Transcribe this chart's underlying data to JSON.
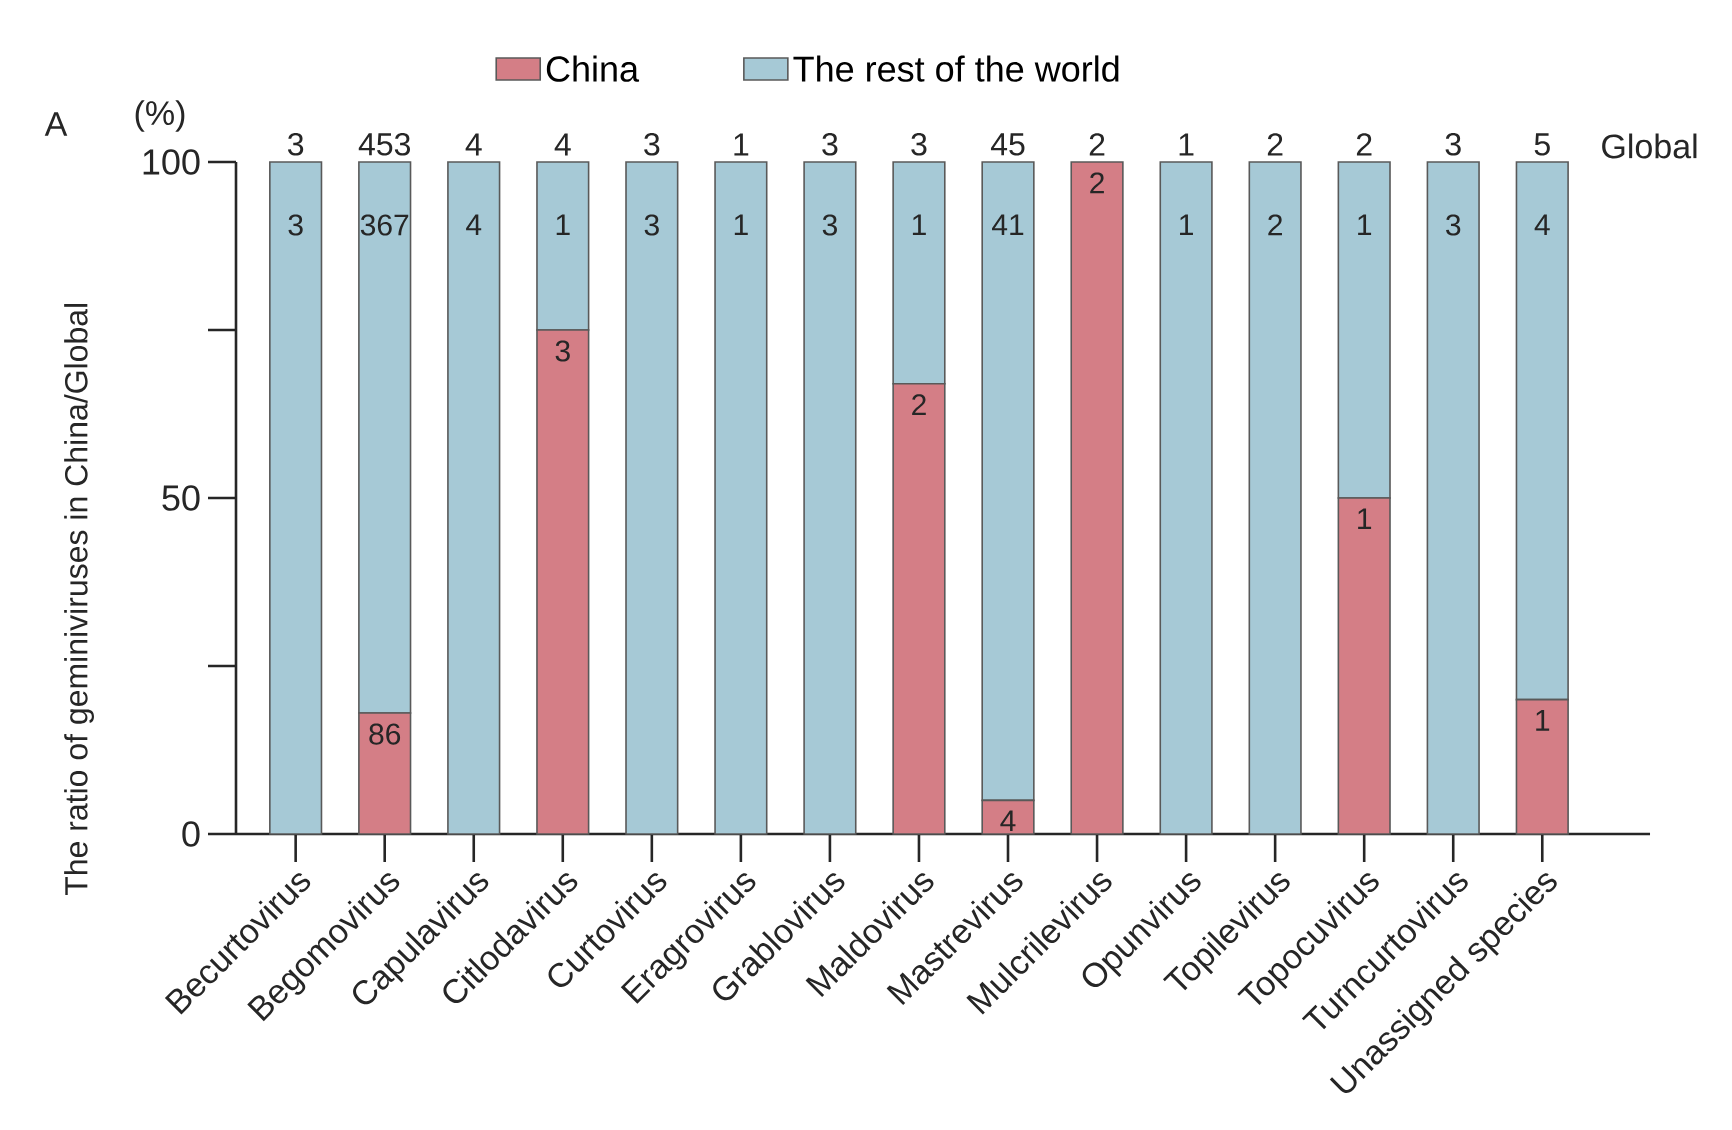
{
  "chart_data": {
    "type": "bar",
    "stacked": true,
    "ylabel": "The ratio of geminiviruses in China/Global",
    "categories": [
      "Becurtovirus",
      "Begomovirus",
      "Capulavirus",
      "Citlodavirus",
      "Curtovirus",
      "Eragrovirus",
      "Grablovirus",
      "Maldovirus",
      "Mastrevirus",
      "Mulcrilevirus",
      "Opunvirus",
      "Topilevirus",
      "Topocuvirus",
      "Turncurtovirus",
      "Unassigned species"
    ],
    "series": [
      {
        "name": "China",
        "color": "#d47e86",
        "values": [
          0,
          18,
          0,
          75,
          0,
          0,
          0,
          67,
          5,
          100,
          0,
          0,
          50,
          0,
          20
        ]
      },
      {
        "name": "The rest of the world",
        "color": "#a6c9d6",
        "values": [
          100,
          82,
          100,
          25,
          100,
          100,
          100,
          33,
          95,
          0,
          100,
          100,
          50,
          100,
          80
        ]
      }
    ],
    "annotations": [
      "A",
      "(%)",
      "Global",
      {
        "text": "3",
        "x": "Becurtovirus",
        "y": 100
      },
      {
        "text": "453",
        "x": "Begomovirus",
        "y": 100
      },
      {
        "text": "4",
        "x": "Capulavirus",
        "y": 100
      },
      {
        "text": "4",
        "x": "Citlodavirus",
        "y": 100
      },
      {
        "text": "3",
        "x": "Curtovirus",
        "y": 100
      },
      {
        "text": "1",
        "x": "Eragrovirus",
        "y": 100
      },
      {
        "text": "3",
        "x": "Grablovirus",
        "y": 100
      },
      {
        "text": "3",
        "x": "Maldovirus",
        "y": 100
      },
      {
        "text": "45",
        "x": "Mastrevirus",
        "y": 100
      },
      {
        "text": "2",
        "x": "Mulcrilevirus",
        "y": 100
      },
      {
        "text": "1",
        "x": "Opunvirus",
        "y": 100
      },
      {
        "text": "2",
        "x": "Topilevirus",
        "y": 100
      },
      {
        "text": "2",
        "x": "Topocuvirus",
        "y": 100
      },
      {
        "text": "3",
        "x": "Turncurtovirus",
        "y": 100
      },
      {
        "text": "5",
        "x": "Unassigned species",
        "y": 100
      },
      {
        "text": "3",
        "x": "Becurtovirus",
        "y": 100
      },
      {
        "text": "367",
        "x": "Begomovirus",
        "y": 100
      },
      {
        "text": "4",
        "x": "Capulavirus",
        "y": 100
      },
      {
        "text": "1",
        "x": "Citlodavirus",
        "y": 100
      },
      {
        "text": "3",
        "x": "Curtovirus",
        "y": 100
      },
      {
        "text": "1",
        "x": "Eragrovirus",
        "y": 100
      },
      {
        "text": "3",
        "x": "Grablovirus",
        "y": 100
      },
      {
        "text": "1",
        "x": "Maldovirus",
        "y": 100
      },
      {
        "text": "41",
        "x": "Mastrevirus",
        "y": 100
      },
      {
        "text": "1",
        "x": "Opunvirus",
        "y": 100
      },
      {
        "text": "2",
        "x": "Topilevirus",
        "y": 100
      },
      {
        "text": "1",
        "x": "Topocuvirus",
        "y": 100
      },
      {
        "text": "3",
        "x": "Turncurtovirus",
        "y": 100
      },
      {
        "text": "4",
        "x": "Unassigned species",
        "y": 100
      },
      {
        "text": "86",
        "x": "Begomovirus",
        "y": 18
      },
      {
        "text": "3",
        "x": "Citlodavirus",
        "y": 75
      },
      {
        "text": "2",
        "x": "Maldovirus",
        "y": 67
      },
      {
        "text": "4",
        "x": "Mastrevirus",
        "y": 5
      },
      {
        "text": "2",
        "x": "Mulcrilevirus",
        "y": 100
      },
      {
        "text": "1",
        "x": "Topocuvirus",
        "y": 50
      },
      {
        "text": "1",
        "x": "Unassigned species",
        "y": 20
      }
    ],
    "ylim": [
      0,
      100
    ],
    "yticks": [
      0,
      {
        "value": 25,
        "label": null
      },
      50,
      {
        "value": 75,
        "label": null
      },
      100
    ],
    "legend": "top",
    "grid": false
  }
}
